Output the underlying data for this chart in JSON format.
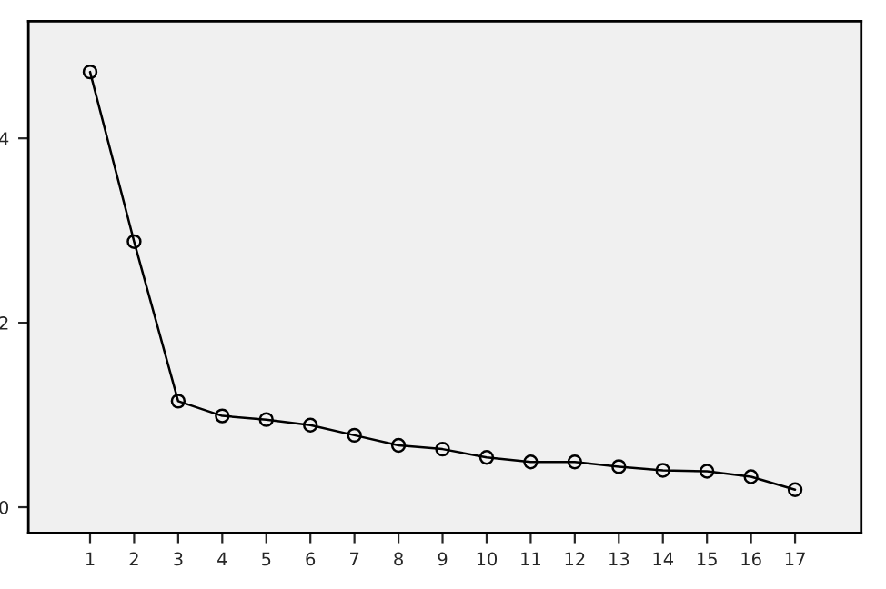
{
  "chart_data": {
    "type": "line",
    "x": [
      1,
      2,
      3,
      4,
      5,
      6,
      7,
      8,
      9,
      10,
      11,
      12,
      13,
      14,
      15,
      16,
      17
    ],
    "series": [
      {
        "color": "#000000",
        "values": [
          4.72,
          2.88,
          1.15,
          0.99,
          0.95,
          0.89,
          0.78,
          0.67,
          0.63,
          0.54,
          0.49,
          0.49,
          0.44,
          0.4,
          0.39,
          0.33,
          0.19
        ]
      }
    ],
    "xlim": [
      -0.4,
      18.5
    ],
    "xticks": [
      1,
      2,
      3,
      4,
      5,
      6,
      7,
      8,
      9,
      10,
      11,
      12,
      13,
      14,
      15,
      16,
      17
    ],
    "ylim": [
      -0.28,
      5.27
    ],
    "yticks": [
      0,
      2,
      4
    ],
    "marker": "circle",
    "line_style": "solid",
    "grid": false
  }
}
